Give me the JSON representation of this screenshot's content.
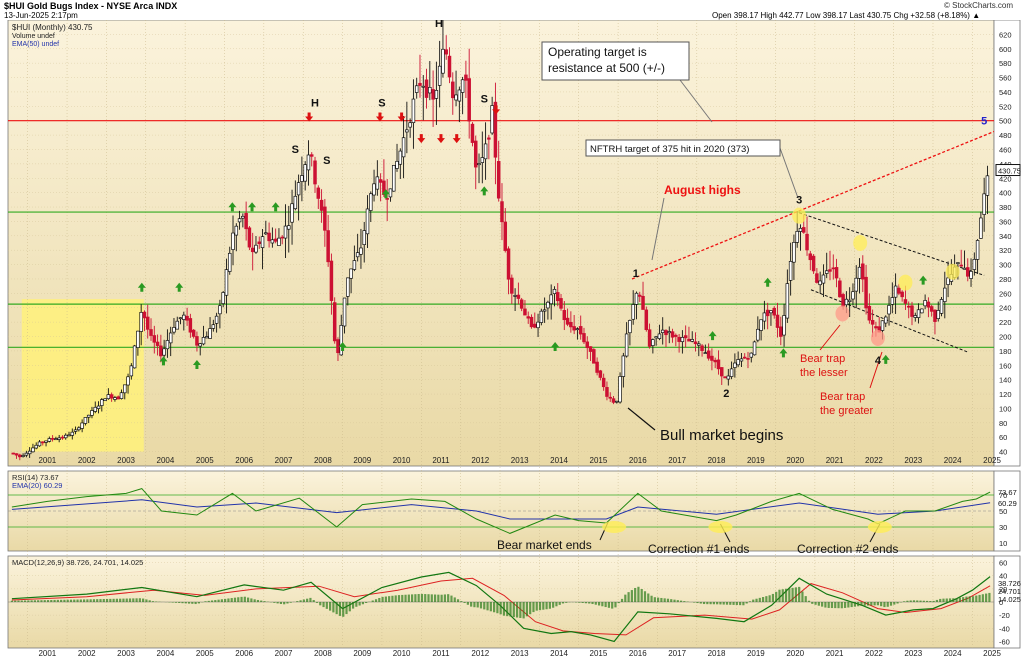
{
  "header": {
    "symbol_line": "$HUI Gold Bugs Index - NYSE Arca INDX",
    "date_line": "13-Jun-2025 2:17pm",
    "quote_line": "Open 398.17  High 442.77  Low 398.17  Last 430.75  Chg +32.58 (+8.18%) ▲",
    "watermark": "© StockCharts.com"
  },
  "colors": {
    "up": "#111111",
    "down": "#cc1133",
    "resistance": "#ee1111",
    "support": "#33aa22",
    "rsi": "#228811",
    "ema": "#2233aa",
    "macd_line": "#117711",
    "signal_line": "#dd2222",
    "hist": "#2a7a1a",
    "highlight": "#fff17a"
  },
  "chart_data": [
    {
      "type": "candlestick",
      "panel": "price",
      "legend": [
        "$HUI (Monthly) 430.75",
        "Volume undef",
        "EMA(50) undef"
      ],
      "ylim": [
        20,
        640
      ],
      "y_ticks": [
        40,
        60,
        80,
        100,
        120,
        140,
        160,
        180,
        200,
        220,
        240,
        260,
        280,
        300,
        320,
        340,
        360,
        380,
        400,
        420,
        440,
        460,
        480,
        500,
        520,
        540,
        560,
        580,
        600,
        620
      ],
      "last_value_label": "430.75",
      "x_ticks": [
        "2001",
        "2002",
        "2003",
        "2004",
        "2005",
        "2006",
        "2007",
        "2008",
        "2009",
        "2010",
        "2011",
        "2012",
        "2013",
        "2014",
        "2015",
        "2016",
        "2017",
        "2018",
        "2019",
        "2020",
        "2021",
        "2022",
        "2023",
        "2024",
        "2025"
      ],
      "xlim": [
        2000.5,
        2025.55
      ],
      "series": [
        {
          "values": [
            [
              2000.6,
              38
            ],
            [
              2000.8,
              33
            ],
            [
              2001.0,
              40
            ],
            [
              2001.3,
              52
            ],
            [
              2001.6,
              58
            ],
            [
              2001.9,
              60
            ],
            [
              2002.2,
              68
            ],
            [
              2002.5,
              88
            ],
            [
              2002.8,
              105
            ],
            [
              2003.0,
              118
            ],
            [
              2003.3,
              115
            ],
            [
              2003.6,
              148
            ],
            [
              2003.9,
              240
            ],
            [
              2004.1,
              200
            ],
            [
              2004.4,
              175
            ],
            [
              2004.7,
              215
            ],
            [
              2004.95,
              230
            ],
            [
              2005.3,
              190
            ],
            [
              2005.6,
              205
            ],
            [
              2005.9,
              240
            ],
            [
              2006.2,
              340
            ],
            [
              2006.45,
              370
            ],
            [
              2006.7,
              310
            ],
            [
              2007.0,
              345
            ],
            [
              2007.3,
              330
            ],
            [
              2007.6,
              355
            ],
            [
              2007.9,
              420
            ],
            [
              2008.15,
              460
            ],
            [
              2008.35,
              405
            ],
            [
              2008.6,
              330
            ],
            [
              2008.85,
              160
            ],
            [
              2009.1,
              280
            ],
            [
              2009.45,
              320
            ],
            [
              2009.8,
              420
            ],
            [
              2010.1,
              395
            ],
            [
              2010.4,
              445
            ],
            [
              2010.75,
              515
            ],
            [
              2011.0,
              560
            ],
            [
              2011.3,
              525
            ],
            [
              2011.6,
              605
            ],
            [
              2011.8,
              540
            ],
            [
              2012.1,
              560
            ],
            [
              2012.4,
              425
            ],
            [
              2012.6,
              450
            ],
            [
              2012.8,
              510
            ],
            [
              2013.0,
              375
            ],
            [
              2013.25,
              270
            ],
            [
              2013.5,
              250
            ],
            [
              2013.8,
              210
            ],
            [
              2014.1,
              235
            ],
            [
              2014.4,
              262
            ],
            [
              2014.7,
              215
            ],
            [
              2015.0,
              210
            ],
            [
              2015.35,
              170
            ],
            [
              2015.7,
              120
            ],
            [
              2015.95,
              106
            ],
            [
              2016.2,
              195
            ],
            [
              2016.5,
              272
            ],
            [
              2016.8,
              185
            ],
            [
              2017.1,
              210
            ],
            [
              2017.5,
              198
            ],
            [
              2017.9,
              192
            ],
            [
              2018.2,
              180
            ],
            [
              2018.5,
              160
            ],
            [
              2018.75,
              138
            ],
            [
              2019.0,
              165
            ],
            [
              2019.4,
              175
            ],
            [
              2019.6,
              225
            ],
            [
              2019.9,
              237
            ],
            [
              2020.15,
              200
            ],
            [
              2020.35,
              300
            ],
            [
              2020.6,
              365
            ],
            [
              2020.85,
              315
            ],
            [
              2021.1,
              270
            ],
            [
              2021.45,
              300
            ],
            [
              2021.7,
              245
            ],
            [
              2021.9,
              255
            ],
            [
              2022.15,
              305
            ],
            [
              2022.35,
              225
            ],
            [
              2022.6,
              205
            ],
            [
              2022.8,
              230
            ],
            [
              2023.05,
              265
            ],
            [
              2023.3,
              245
            ],
            [
              2023.55,
              225
            ],
            [
              2023.8,
              250
            ],
            [
              2024.05,
              225
            ],
            [
              2024.3,
              270
            ],
            [
              2024.5,
              290
            ],
            [
              2024.75,
              305
            ],
            [
              2024.95,
              280
            ],
            [
              2025.1,
              325
            ],
            [
              2025.3,
              395
            ],
            [
              2025.45,
              430.75
            ]
          ]
        }
      ],
      "horizontal_levels": [
        500,
        373,
        245,
        185
      ],
      "annotations": {
        "operating_target": [
          "Operating target is",
          "resistance at 500 (+/-)"
        ],
        "nftrh_target": "NFTRH target of 375 hit in 2020 (373)",
        "august_highs": "August highs",
        "bull_market": "Bull market begins",
        "bear_trap_lesser": [
          "Bear trap",
          "the lesser"
        ],
        "bear_trap_greater": [
          "Bear trap",
          "the greater"
        ],
        "wave_1": "1",
        "wave_2": "2",
        "wave_3": "3",
        "wave_4": "4",
        "wave_5": "5",
        "hs_labels": [
          "S",
          "H",
          "S",
          "S",
          "H",
          "S",
          "S"
        ]
      }
    },
    {
      "type": "line",
      "panel": "rsi",
      "legend": [
        "RSI(14) 73.67",
        "EMA(20) 60.29"
      ],
      "ylim": [
        0,
        100
      ],
      "y_ticks": [
        10,
        30,
        50,
        70
      ],
      "last_value_labels": [
        "73.67",
        "60.29"
      ],
      "levels": [
        70,
        30
      ],
      "series": [
        {
          "values": [
            [
              2000.6,
              55
            ],
            [
              2001.5,
              62
            ],
            [
              2002.5,
              68
            ],
            [
              2003.5,
              72
            ],
            [
              2003.9,
              78
            ],
            [
              2004.4,
              50
            ],
            [
              2005.3,
              45
            ],
            [
              2006.2,
              72
            ],
            [
              2006.8,
              50
            ],
            [
              2007.9,
              66
            ],
            [
              2008.85,
              30
            ],
            [
              2009.5,
              58
            ],
            [
              2010.75,
              65
            ],
            [
              2011.6,
              62
            ],
            [
              2012.4,
              40
            ],
            [
              2013.25,
              22
            ],
            [
              2014.4,
              45
            ],
            [
              2015.0,
              38
            ],
            [
              2015.7,
              35
            ],
            [
              2016.5,
              72
            ],
            [
              2017.1,
              50
            ],
            [
              2018.5,
              38
            ],
            [
              2019.0,
              45
            ],
            [
              2019.9,
              62
            ],
            [
              2020.6,
              72
            ],
            [
              2021.45,
              52
            ],
            [
              2022.35,
              40
            ],
            [
              2022.6,
              34
            ],
            [
              2023.3,
              50
            ],
            [
              2024.05,
              50
            ],
            [
              2024.75,
              62
            ],
            [
              2025.1,
              65
            ],
            [
              2025.45,
              73.67
            ]
          ]
        },
        {
          "values": [
            [
              2000.6,
              52
            ],
            [
              2003.9,
              64
            ],
            [
              2005.3,
              55
            ],
            [
              2006.8,
              60
            ],
            [
              2008.85,
              48
            ],
            [
              2010.75,
              58
            ],
            [
              2012.4,
              50
            ],
            [
              2013.25,
              40
            ],
            [
              2015.7,
              40
            ],
            [
              2016.5,
              55
            ],
            [
              2018.5,
              46
            ],
            [
              2020.6,
              60
            ],
            [
              2022.6,
              46
            ],
            [
              2024.05,
              50
            ],
            [
              2025.45,
              60.29
            ]
          ]
        }
      ],
      "annotations": {
        "bear_market_ends": "Bear market ends",
        "correction_1": "Correction #1 ends",
        "correction_2": "Correction #2 ends"
      }
    },
    {
      "type": "line",
      "panel": "macd",
      "legend": "MACD(12,26,9) 38.726, 24.701, 14.025",
      "ylim": [
        -70,
        70
      ],
      "y_ticks": [
        -60,
        -40,
        -20,
        0,
        20,
        40,
        60
      ],
      "last_value_labels": [
        "38.726",
        "24.701",
        "14.025"
      ],
      "series": [
        {
          "name": "MACD",
          "values": [
            [
              2000.6,
              5
            ],
            [
              2002.5,
              12
            ],
            [
              2003.9,
              22
            ],
            [
              2005.3,
              8
            ],
            [
              2006.5,
              26
            ],
            [
              2007.5,
              18
            ],
            [
              2008.2,
              30
            ],
            [
              2009.0,
              -10
            ],
            [
              2010.0,
              22
            ],
            [
              2011.0,
              38
            ],
            [
              2011.7,
              45
            ],
            [
              2012.4,
              25
            ],
            [
              2013.0,
              -5
            ],
            [
              2013.6,
              -40
            ],
            [
              2014.3,
              -48
            ],
            [
              2014.8,
              -45
            ],
            [
              2015.3,
              -50
            ],
            [
              2015.9,
              -60
            ],
            [
              2016.5,
              -15
            ],
            [
              2017.3,
              -18
            ],
            [
              2018.5,
              -25
            ],
            [
              2019.2,
              -30
            ],
            [
              2019.9,
              -5
            ],
            [
              2020.6,
              36
            ],
            [
              2021.3,
              12
            ],
            [
              2022.2,
              -5
            ],
            [
              2022.8,
              -20
            ],
            [
              2023.5,
              -12
            ],
            [
              2024.0,
              -10
            ],
            [
              2024.6,
              5
            ],
            [
              2025.0,
              18
            ],
            [
              2025.45,
              38.726
            ]
          ]
        },
        {
          "name": "Signal",
          "values": [
            [
              2000.6,
              3
            ],
            [
              2002.5,
              8
            ],
            [
              2004.2,
              18
            ],
            [
              2005.5,
              10
            ],
            [
              2006.8,
              20
            ],
            [
              2008.4,
              24
            ],
            [
              2009.3,
              8
            ],
            [
              2010.4,
              18
            ],
            [
              2011.5,
              32
            ],
            [
              2012.3,
              36
            ],
            [
              2013.1,
              10
            ],
            [
              2013.9,
              -30
            ],
            [
              2014.6,
              -44
            ],
            [
              2015.4,
              -48
            ],
            [
              2016.2,
              -50
            ],
            [
              2016.9,
              -24
            ],
            [
              2018.2,
              -20
            ],
            [
              2019.4,
              -26
            ],
            [
              2020.1,
              -12
            ],
            [
              2020.9,
              28
            ],
            [
              2021.7,
              14
            ],
            [
              2022.6,
              -10
            ],
            [
              2023.3,
              -16
            ],
            [
              2024.2,
              -10
            ],
            [
              2024.9,
              6
            ],
            [
              2025.45,
              24.701
            ]
          ]
        }
      ]
    }
  ]
}
